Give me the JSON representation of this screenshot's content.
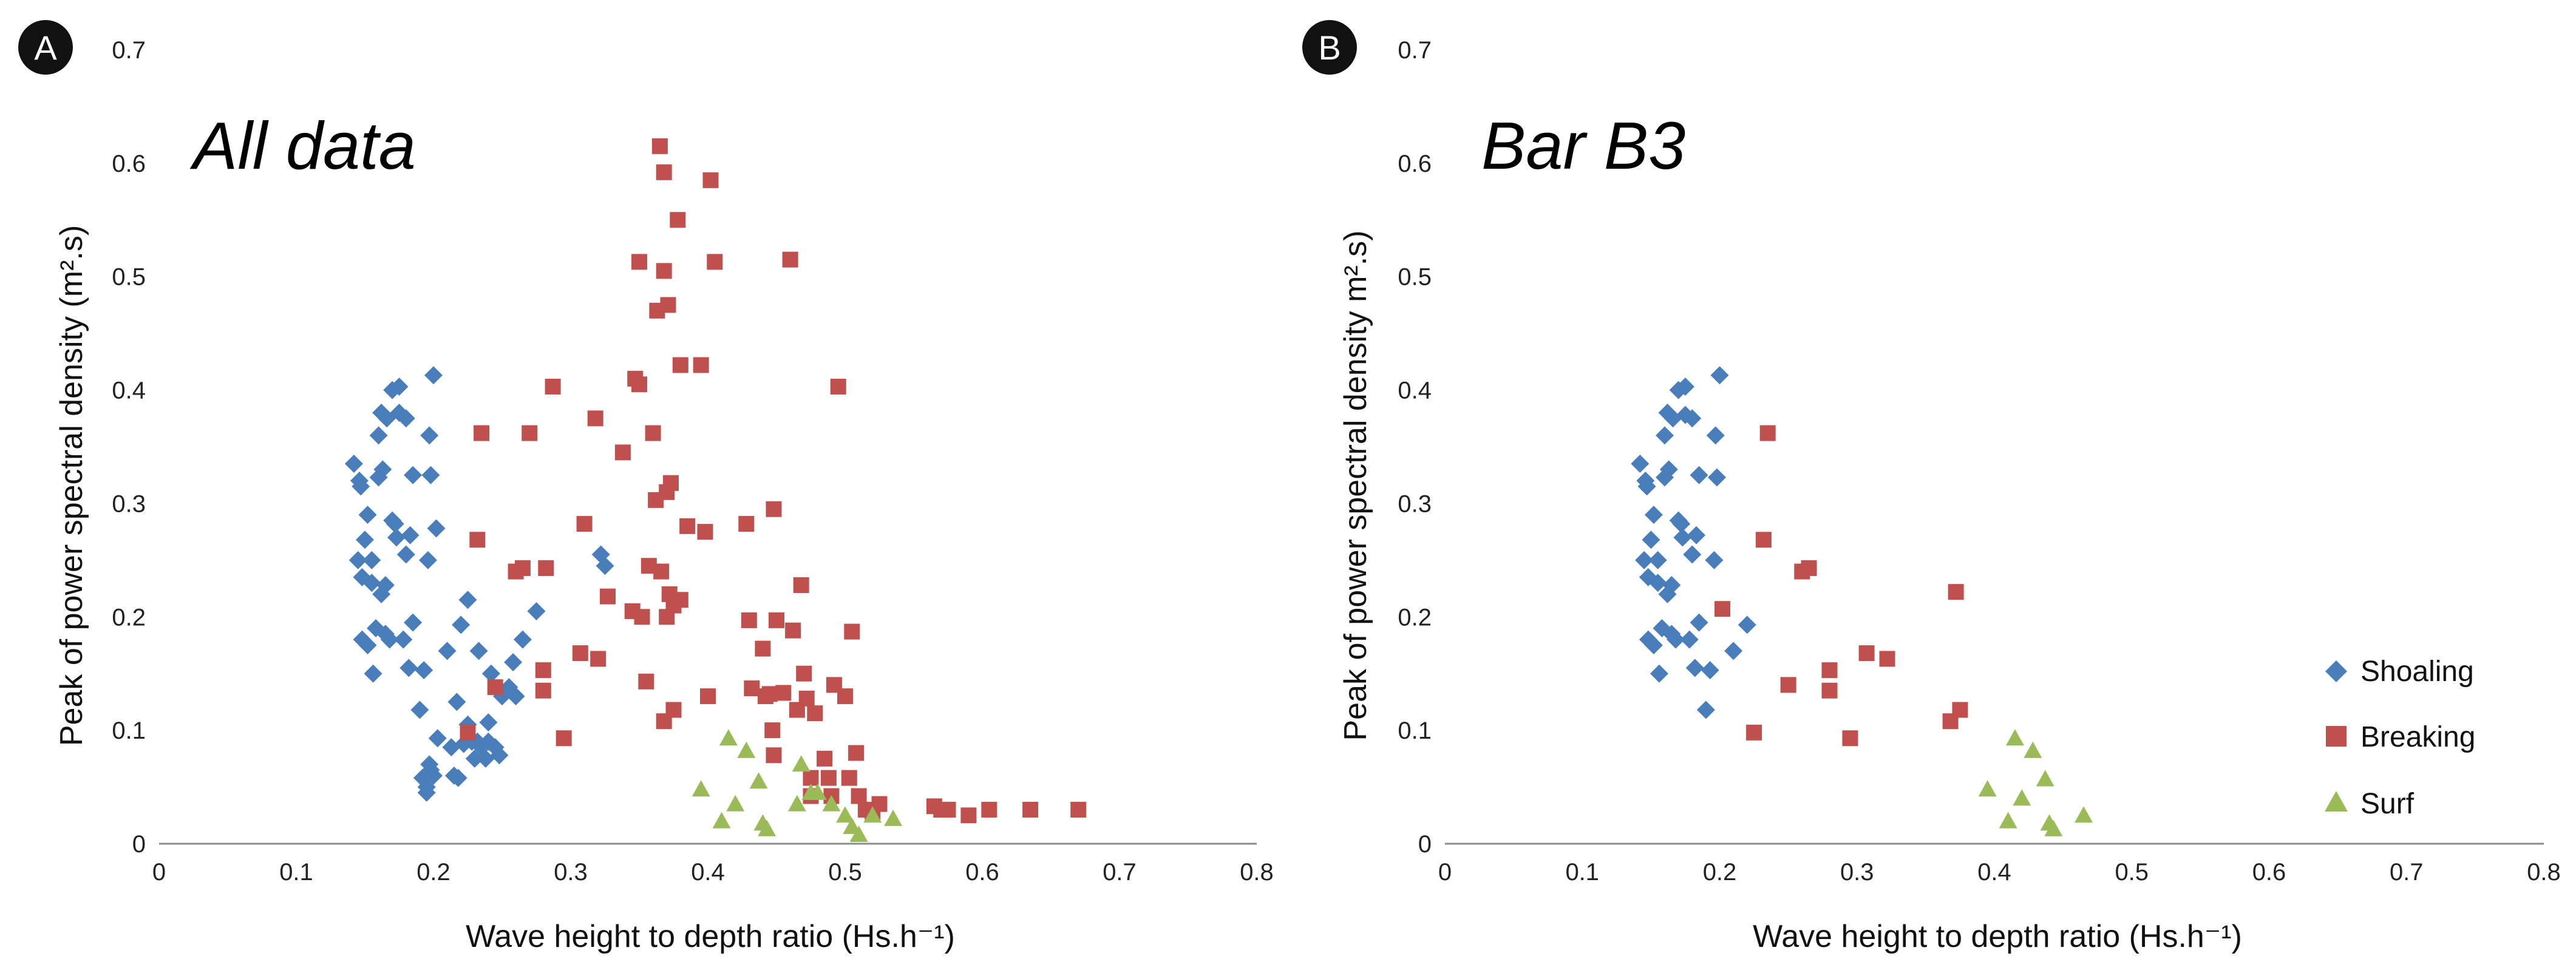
{
  "colors": {
    "Shoaling": "#4a7ebb",
    "Breaking": "#c0504d",
    "Surf": "#9bbb59"
  },
  "chart_data": [
    {
      "type": "scatter",
      "badge": "A",
      "title": "All data",
      "xlabel": "Wave height to depth ratio (Hs.h⁻¹)",
      "ylabel": "Peak of power spectral density (m².s)",
      "xlim": [
        0,
        0.8
      ],
      "ylim": [
        0,
        0.7
      ],
      "xticks": [
        "0",
        "0.1",
        "0.2",
        "0.3",
        "0.4",
        "0.5",
        "0.6",
        "0.7",
        "0.8"
      ],
      "yticks": [
        "0",
        "0.1",
        "0.2",
        "0.3",
        "0.4",
        "0.5",
        "0.6",
        "0.7"
      ],
      "series": [
        {
          "name": "Shoaling",
          "marker": "diamond",
          "points": [
            [
              0.142,
              0.335
            ],
            [
              0.145,
              0.25
            ],
            [
              0.146,
              0.32
            ],
            [
              0.147,
              0.315
            ],
            [
              0.148,
              0.18
            ],
            [
              0.148,
              0.235
            ],
            [
              0.15,
              0.268
            ],
            [
              0.152,
              0.175
            ],
            [
              0.152,
              0.29
            ],
            [
              0.155,
              0.25
            ],
            [
              0.155,
              0.23
            ],
            [
              0.156,
              0.15
            ],
            [
              0.158,
              0.19
            ],
            [
              0.16,
              0.323
            ],
            [
              0.16,
              0.36
            ],
            [
              0.162,
              0.38
            ],
            [
              0.162,
              0.22
            ],
            [
              0.163,
              0.33
            ],
            [
              0.165,
              0.185
            ],
            [
              0.165,
              0.228
            ],
            [
              0.166,
              0.375
            ],
            [
              0.168,
              0.18
            ],
            [
              0.17,
              0.285
            ],
            [
              0.17,
              0.4
            ],
            [
              0.172,
              0.282
            ],
            [
              0.173,
              0.27
            ],
            [
              0.175,
              0.403
            ],
            [
              0.175,
              0.38
            ],
            [
              0.178,
              0.18
            ],
            [
              0.18,
              0.375
            ],
            [
              0.18,
              0.255
            ],
            [
              0.182,
              0.155
            ],
            [
              0.183,
              0.272
            ],
            [
              0.185,
              0.195
            ],
            [
              0.185,
              0.325
            ],
            [
              0.19,
              0.118
            ],
            [
              0.192,
              0.058
            ],
            [
              0.193,
              0.153
            ],
            [
              0.195,
              0.05
            ],
            [
              0.195,
              0.045
            ],
            [
              0.196,
              0.25
            ],
            [
              0.197,
              0.07
            ],
            [
              0.197,
              0.36
            ],
            [
              0.198,
              0.065
            ],
            [
              0.198,
              0.325
            ],
            [
              0.2,
              0.413
            ],
            [
              0.2,
              0.06
            ],
            [
              0.202,
              0.278
            ],
            [
              0.203,
              0.093
            ],
            [
              0.21,
              0.17
            ],
            [
              0.213,
              0.085
            ],
            [
              0.215,
              0.06
            ],
            [
              0.217,
              0.125
            ],
            [
              0.218,
              0.058
            ],
            [
              0.22,
              0.193
            ],
            [
              0.222,
              0.088
            ],
            [
              0.225,
              0.215
            ],
            [
              0.225,
              0.105
            ],
            [
              0.228,
              0.09
            ],
            [
              0.23,
              0.075
            ],
            [
              0.232,
              0.09
            ],
            [
              0.233,
              0.17
            ],
            [
              0.235,
              0.085
            ],
            [
              0.238,
              0.075
            ],
            [
              0.24,
              0.09
            ],
            [
              0.24,
              0.107
            ],
            [
              0.242,
              0.15
            ],
            [
              0.245,
              0.085
            ],
            [
              0.248,
              0.078
            ],
            [
              0.25,
              0.13
            ],
            [
              0.255,
              0.138
            ],
            [
              0.258,
              0.16
            ],
            [
              0.26,
              0.13
            ],
            [
              0.265,
              0.18
            ],
            [
              0.275,
              0.205
            ],
            [
              0.322,
              0.255
            ],
            [
              0.325,
              0.245
            ]
          ]
        },
        {
          "name": "Breaking",
          "marker": "square",
          "points": [
            [
              0.225,
              0.098
            ],
            [
              0.232,
              0.268
            ],
            [
              0.235,
              0.362
            ],
            [
              0.245,
              0.138
            ],
            [
              0.26,
              0.24
            ],
            [
              0.265,
              0.243
            ],
            [
              0.27,
              0.362
            ],
            [
              0.28,
              0.153
            ],
            [
              0.28,
              0.135
            ],
            [
              0.282,
              0.243
            ],
            [
              0.287,
              0.403
            ],
            [
              0.295,
              0.093
            ],
            [
              0.307,
              0.168
            ],
            [
              0.31,
              0.282
            ],
            [
              0.318,
              0.375
            ],
            [
              0.32,
              0.163
            ],
            [
              0.327,
              0.218
            ],
            [
              0.338,
              0.345
            ],
            [
              0.345,
              0.205
            ],
            [
              0.347,
              0.41
            ],
            [
              0.35,
              0.513
            ],
            [
              0.35,
              0.405
            ],
            [
              0.352,
              0.2
            ],
            [
              0.355,
              0.143
            ],
            [
              0.357,
              0.245
            ],
            [
              0.36,
              0.362
            ],
            [
              0.362,
              0.303
            ],
            [
              0.363,
              0.47
            ],
            [
              0.365,
              0.615
            ],
            [
              0.366,
              0.24
            ],
            [
              0.368,
              0.592
            ],
            [
              0.368,
              0.505
            ],
            [
              0.368,
              0.108
            ],
            [
              0.37,
              0.2
            ],
            [
              0.37,
              0.31
            ],
            [
              0.371,
              0.475
            ],
            [
              0.372,
              0.22
            ],
            [
              0.373,
              0.318
            ],
            [
              0.375,
              0.118
            ],
            [
              0.375,
              0.21
            ],
            [
              0.378,
              0.55
            ],
            [
              0.38,
              0.215
            ],
            [
              0.38,
              0.422
            ],
            [
              0.385,
              0.28
            ],
            [
              0.395,
              0.422
            ],
            [
              0.398,
              0.275
            ],
            [
              0.4,
              0.13
            ],
            [
              0.402,
              0.585
            ],
            [
              0.405,
              0.513
            ],
            [
              0.428,
              0.282
            ],
            [
              0.43,
              0.197
            ],
            [
              0.432,
              0.137
            ],
            [
              0.44,
              0.172
            ],
            [
              0.442,
              0.13
            ],
            [
              0.445,
              0.132
            ],
            [
              0.447,
              0.1
            ],
            [
              0.448,
              0.295
            ],
            [
              0.448,
              0.078
            ],
            [
              0.45,
              0.197
            ],
            [
              0.455,
              0.133
            ],
            [
              0.46,
              0.515
            ],
            [
              0.462,
              0.188
            ],
            [
              0.465,
              0.118
            ],
            [
              0.468,
              0.228
            ],
            [
              0.47,
              0.15
            ],
            [
              0.472,
              0.128
            ],
            [
              0.475,
              0.058
            ],
            [
              0.475,
              0.042
            ],
            [
              0.478,
              0.115
            ],
            [
              0.485,
              0.075
            ],
            [
              0.488,
              0.058
            ],
            [
              0.49,
              0.042
            ],
            [
              0.492,
              0.14
            ],
            [
              0.495,
              0.403
            ],
            [
              0.5,
              0.13
            ],
            [
              0.503,
              0.058
            ],
            [
              0.505,
              0.187
            ],
            [
              0.508,
              0.08
            ],
            [
              0.51,
              0.042
            ],
            [
              0.515,
              0.03
            ],
            [
              0.52,
              0.028
            ],
            [
              0.525,
              0.035
            ],
            [
              0.565,
              0.033
            ],
            [
              0.57,
              0.03
            ],
            [
              0.575,
              0.03
            ],
            [
              0.59,
              0.025
            ],
            [
              0.605,
              0.03
            ],
            [
              0.635,
              0.03
            ],
            [
              0.67,
              0.03
            ]
          ]
        },
        {
          "name": "Surf",
          "marker": "triangle",
          "points": [
            [
              0.395,
              0.048
            ],
            [
              0.41,
              0.02
            ],
            [
              0.415,
              0.093
            ],
            [
              0.42,
              0.035
            ],
            [
              0.428,
              0.082
            ],
            [
              0.437,
              0.055
            ],
            [
              0.44,
              0.018
            ],
            [
              0.443,
              0.013
            ],
            [
              0.465,
              0.035
            ],
            [
              0.468,
              0.07
            ],
            [
              0.475,
              0.045
            ],
            [
              0.48,
              0.045
            ],
            [
              0.49,
              0.035
            ],
            [
              0.5,
              0.025
            ],
            [
              0.505,
              0.015
            ],
            [
              0.51,
              0.008
            ],
            [
              0.52,
              0.025
            ],
            [
              0.535,
              0.022
            ]
          ]
        }
      ]
    },
    {
      "type": "scatter",
      "badge": "B",
      "title": "Bar B3",
      "xlabel": "Wave height to depth ratio (Hs.h⁻¹)",
      "ylabel": "Peak of power spectral density m².s)",
      "xlim": [
        0,
        0.8
      ],
      "ylim": [
        0,
        0.7
      ],
      "xticks": [
        "0",
        "0.1",
        "0.2",
        "0.3",
        "0.4",
        "0.5",
        "0.6",
        "0.7",
        "0.8"
      ],
      "yticks": [
        "0",
        "0.1",
        "0.2",
        "0.3",
        "0.4",
        "0.5",
        "0.6",
        "0.7"
      ],
      "legend_position": "bottom-right",
      "series": [
        {
          "name": "Shoaling",
          "marker": "diamond",
          "points": [
            [
              0.142,
              0.335
            ],
            [
              0.145,
              0.25
            ],
            [
              0.146,
              0.32
            ],
            [
              0.147,
              0.315
            ],
            [
              0.148,
              0.18
            ],
            [
              0.148,
              0.235
            ],
            [
              0.15,
              0.268
            ],
            [
              0.152,
              0.175
            ],
            [
              0.152,
              0.29
            ],
            [
              0.155,
              0.25
            ],
            [
              0.155,
              0.23
            ],
            [
              0.156,
              0.15
            ],
            [
              0.158,
              0.19
            ],
            [
              0.16,
              0.323
            ],
            [
              0.16,
              0.36
            ],
            [
              0.162,
              0.38
            ],
            [
              0.162,
              0.22
            ],
            [
              0.163,
              0.33
            ],
            [
              0.165,
              0.185
            ],
            [
              0.165,
              0.228
            ],
            [
              0.166,
              0.375
            ],
            [
              0.168,
              0.18
            ],
            [
              0.17,
              0.285
            ],
            [
              0.17,
              0.4
            ],
            [
              0.172,
              0.282
            ],
            [
              0.173,
              0.27
            ],
            [
              0.175,
              0.403
            ],
            [
              0.175,
              0.378
            ],
            [
              0.178,
              0.18
            ],
            [
              0.18,
              0.375
            ],
            [
              0.18,
              0.255
            ],
            [
              0.182,
              0.155
            ],
            [
              0.183,
              0.272
            ],
            [
              0.185,
              0.195
            ],
            [
              0.185,
              0.325
            ],
            [
              0.19,
              0.118
            ],
            [
              0.193,
              0.153
            ],
            [
              0.196,
              0.25
            ],
            [
              0.197,
              0.36
            ],
            [
              0.198,
              0.323
            ],
            [
              0.2,
              0.413
            ],
            [
              0.21,
              0.17
            ],
            [
              0.22,
              0.193
            ]
          ]
        },
        {
          "name": "Breaking",
          "marker": "square",
          "points": [
            [
              0.225,
              0.098
            ],
            [
              0.232,
              0.268
            ],
            [
              0.235,
              0.362
            ],
            [
              0.202,
              0.207
            ],
            [
              0.25,
              0.14
            ],
            [
              0.26,
              0.24
            ],
            [
              0.265,
              0.243
            ],
            [
              0.28,
              0.153
            ],
            [
              0.28,
              0.135
            ],
            [
              0.295,
              0.093
            ],
            [
              0.307,
              0.168
            ],
            [
              0.322,
              0.163
            ],
            [
              0.368,
              0.108
            ],
            [
              0.372,
              0.222
            ],
            [
              0.375,
              0.118
            ]
          ]
        },
        {
          "name": "Surf",
          "marker": "triangle",
          "points": [
            [
              0.395,
              0.048
            ],
            [
              0.41,
              0.02
            ],
            [
              0.415,
              0.093
            ],
            [
              0.42,
              0.04
            ],
            [
              0.428,
              0.082
            ],
            [
              0.437,
              0.057
            ],
            [
              0.44,
              0.018
            ],
            [
              0.443,
              0.013
            ],
            [
              0.465,
              0.025
            ]
          ]
        }
      ]
    }
  ]
}
